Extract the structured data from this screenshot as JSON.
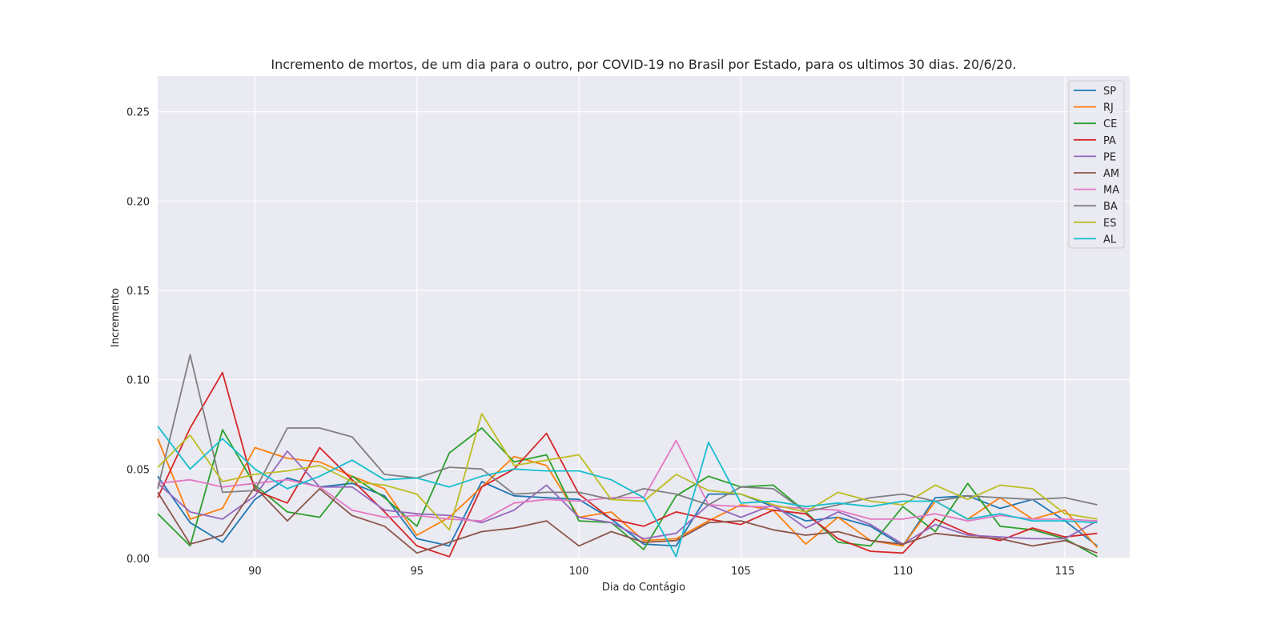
{
  "chart_data": {
    "type": "line",
    "title": "Incremento de mortos, de um dia para o outro, por COVID-19 no Brasil por Estado, para os ultimos 30 dias. 20/6/20.",
    "xlabel": "Dia do Contágio",
    "ylabel": "Incremento",
    "xlim": [
      87,
      117
    ],
    "ylim": [
      0,
      0.27
    ],
    "x_ticks": [
      90,
      95,
      100,
      105,
      110,
      115
    ],
    "y_ticks": [
      "0.00",
      "0.05",
      "0.10",
      "0.15",
      "0.20",
      "0.25"
    ],
    "grid": true,
    "legend_position": "top-right",
    "x": [
      87,
      88,
      89,
      90,
      91,
      92,
      93,
      94,
      95,
      96,
      97,
      98,
      99,
      100,
      101,
      102,
      103,
      104,
      105,
      106,
      107,
      108,
      109,
      110,
      111,
      112,
      113,
      114,
      115,
      116
    ],
    "series": [
      {
        "name": "SP",
        "color": "#1f77b4",
        "values": [
          0.046,
          0.02,
          0.009,
          0.033,
          0.045,
          0.04,
          0.042,
          0.035,
          0.011,
          0.007,
          0.043,
          0.035,
          0.034,
          0.033,
          0.022,
          0.008,
          0.007,
          0.036,
          0.036,
          0.029,
          0.021,
          0.023,
          0.018,
          0.007,
          0.034,
          0.035,
          0.028,
          0.033,
          0.021,
          0.007
        ]
      },
      {
        "name": "RJ",
        "color": "#ff7f0e",
        "values": [
          0.067,
          0.022,
          0.028,
          0.062,
          0.056,
          0.054,
          0.046,
          0.039,
          0.013,
          0.023,
          0.04,
          0.057,
          0.052,
          0.023,
          0.026,
          0.01,
          0.011,
          0.021,
          0.03,
          0.027,
          0.008,
          0.023,
          0.01,
          0.007,
          0.032,
          0.022,
          0.034,
          0.022,
          0.027,
          0.006
        ]
      },
      {
        "name": "CE",
        "color": "#2ca02c",
        "values": [
          0.025,
          0.007,
          0.072,
          0.041,
          0.026,
          0.023,
          0.046,
          0.034,
          0.018,
          0.059,
          0.073,
          0.054,
          0.058,
          0.021,
          0.02,
          0.005,
          0.035,
          0.046,
          0.04,
          0.041,
          0.026,
          0.009,
          0.007,
          0.029,
          0.015,
          0.042,
          0.018,
          0.016,
          0.011,
          0.001
        ]
      },
      {
        "name": "PA",
        "color": "#d62728",
        "values": [
          0.034,
          0.073,
          0.104,
          0.038,
          0.031,
          0.062,
          0.044,
          0.026,
          0.007,
          0.001,
          0.04,
          0.05,
          0.07,
          0.036,
          0.022,
          0.018,
          0.026,
          0.022,
          0.019,
          0.027,
          0.025,
          0.011,
          0.004,
          0.003,
          0.022,
          0.014,
          0.01,
          0.017,
          0.012,
          0.014
        ]
      },
      {
        "name": "PE",
        "color": "#9467bd",
        "values": [
          0.042,
          0.026,
          0.022,
          0.035,
          0.06,
          0.04,
          0.04,
          0.027,
          0.025,
          0.024,
          0.02,
          0.027,
          0.041,
          0.023,
          0.02,
          0.011,
          0.014,
          0.03,
          0.023,
          0.03,
          0.017,
          0.026,
          0.019,
          0.008,
          0.019,
          0.013,
          0.012,
          0.011,
          0.011,
          0.021
        ]
      },
      {
        "name": "AM",
        "color": "#8c564b",
        "values": [
          0.037,
          0.008,
          0.013,
          0.04,
          0.021,
          0.039,
          0.024,
          0.018,
          0.003,
          0.009,
          0.015,
          0.017,
          0.021,
          0.007,
          0.015,
          0.009,
          0.01,
          0.02,
          0.021,
          0.016,
          0.013,
          0.015,
          0.01,
          0.008,
          0.014,
          0.012,
          0.011,
          0.007,
          0.01,
          0.003
        ]
      },
      {
        "name": "MA",
        "color": "#e377c2",
        "values": [
          0.042,
          0.044,
          0.04,
          0.042,
          0.044,
          0.04,
          0.027,
          0.023,
          0.024,
          0.022,
          0.021,
          0.031,
          0.033,
          0.032,
          0.034,
          0.034,
          0.066,
          0.03,
          0.029,
          0.029,
          0.028,
          0.027,
          0.022,
          0.022,
          0.025,
          0.021,
          0.024,
          0.022,
          0.022,
          0.021
        ]
      },
      {
        "name": "BA",
        "color": "#7f7f7f",
        "values": [
          0.039,
          0.114,
          0.037,
          0.038,
          0.073,
          0.073,
          0.068,
          0.047,
          0.045,
          0.051,
          0.05,
          0.036,
          0.037,
          0.037,
          0.033,
          0.039,
          0.036,
          0.03,
          0.04,
          0.039,
          0.026,
          0.03,
          0.034,
          0.036,
          0.032,
          0.035,
          0.034,
          0.033,
          0.034,
          0.03
        ]
      },
      {
        "name": "ES",
        "color": "#bcbd22",
        "values": [
          0.051,
          0.069,
          0.043,
          0.047,
          0.049,
          0.052,
          0.043,
          0.041,
          0.036,
          0.016,
          0.081,
          0.052,
          0.055,
          0.058,
          0.033,
          0.032,
          0.047,
          0.038,
          0.036,
          0.03,
          0.026,
          0.037,
          0.032,
          0.03,
          0.041,
          0.033,
          0.041,
          0.039,
          0.025,
          0.022
        ]
      },
      {
        "name": "AL",
        "color": "#17becf",
        "values": [
          0.074,
          0.05,
          0.067,
          0.05,
          0.039,
          0.046,
          0.055,
          0.044,
          0.045,
          0.04,
          0.046,
          0.05,
          0.049,
          0.049,
          0.044,
          0.034,
          0.001,
          0.065,
          0.031,
          0.032,
          0.029,
          0.031,
          0.029,
          0.032,
          0.032,
          0.022,
          0.025,
          0.021,
          0.021,
          0.02
        ]
      }
    ]
  }
}
